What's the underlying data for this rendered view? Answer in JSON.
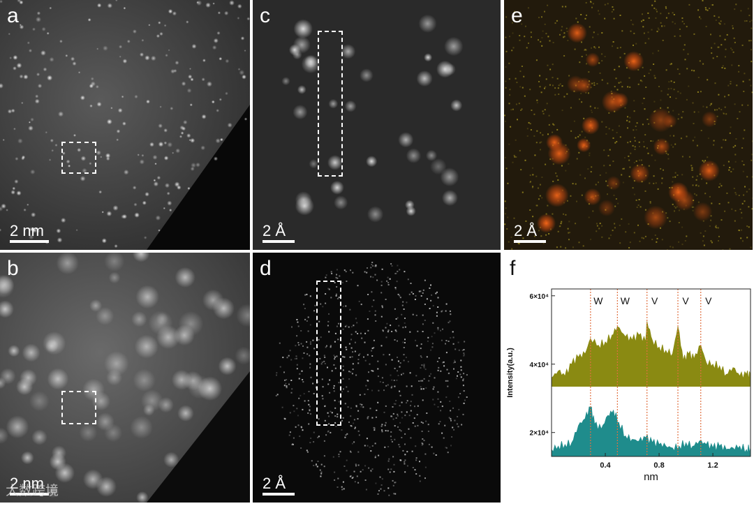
{
  "panels": {
    "a": {
      "label": "a",
      "scale": "2 nm"
    },
    "b": {
      "label": "b",
      "scale": "2 nm"
    },
    "c": {
      "label": "c",
      "scale": "2 Å"
    },
    "d": {
      "label": "d",
      "scale": "2 Å"
    },
    "e": {
      "label": "e",
      "scale": "2 Å"
    },
    "f": {
      "label": "f"
    }
  },
  "watermark": "大数跨境",
  "colors": {
    "top_series": "#8a8a12",
    "bottom_series": "#1f8c8c",
    "marker_line": "#e07040"
  },
  "chart_data": {
    "type": "area",
    "title": "",
    "xlabel": "nm",
    "ylabel": "Intensity(a.u.)",
    "xlim": [
      0.0,
      1.48
    ],
    "ylim": [
      13000,
      62000
    ],
    "x_ticks": [
      0.4,
      0.8,
      1.2
    ],
    "x_tick_labels": [
      "0.4",
      "0.8",
      "1.2"
    ],
    "y_ticks": [
      20000,
      40000,
      60000
    ],
    "y_tick_labels": [
      "2×10⁴",
      "4×10⁴",
      "6×10⁴"
    ],
    "markers": [
      {
        "x": 0.29,
        "label": "W"
      },
      {
        "x": 0.49,
        "label": "W"
      },
      {
        "x": 0.71,
        "label": "V"
      },
      {
        "x": 0.94,
        "label": "V"
      },
      {
        "x": 1.11,
        "label": "V"
      }
    ],
    "series": [
      {
        "color": "#8a8a12",
        "baseline": 33500,
        "x": [
          0.0,
          0.05,
          0.1,
          0.15,
          0.2,
          0.25,
          0.29,
          0.35,
          0.4,
          0.45,
          0.49,
          0.55,
          0.6,
          0.65,
          0.7,
          0.71,
          0.75,
          0.8,
          0.85,
          0.9,
          0.94,
          0.98,
          1.02,
          1.06,
          1.11,
          1.15,
          1.2,
          1.25,
          1.3,
          1.35,
          1.4,
          1.45,
          1.48
        ],
        "values": [
          36000,
          38000,
          36500,
          40000,
          42000,
          43000,
          47500,
          45500,
          46500,
          48500,
          51000,
          48000,
          47000,
          48500,
          46500,
          52500,
          47000,
          45000,
          44000,
          43000,
          51000,
          41000,
          43000,
          41500,
          45500,
          40500,
          40000,
          39500,
          37000,
          39000,
          36500,
          37000,
          36500
        ]
      },
      {
        "color": "#1f8c8c",
        "baseline": 13000,
        "x": [
          0.0,
          0.05,
          0.1,
          0.15,
          0.2,
          0.25,
          0.29,
          0.32,
          0.37,
          0.42,
          0.46,
          0.5,
          0.55,
          0.6,
          0.65,
          0.7,
          0.75,
          0.8,
          0.85,
          0.9,
          0.95,
          1.0,
          1.05,
          1.1,
          1.15,
          1.2,
          1.25,
          1.3,
          1.35,
          1.4,
          1.45,
          1.48
        ],
        "values": [
          15000,
          16000,
          16500,
          17000,
          22000,
          24000,
          27500,
          22500,
          21000,
          25000,
          26500,
          23000,
          19000,
          18000,
          17500,
          18500,
          17000,
          16500,
          16000,
          15500,
          16000,
          17000,
          16000,
          17500,
          16500,
          15500,
          16000,
          15000,
          15500,
          16000,
          15000,
          15500
        ]
      }
    ]
  }
}
